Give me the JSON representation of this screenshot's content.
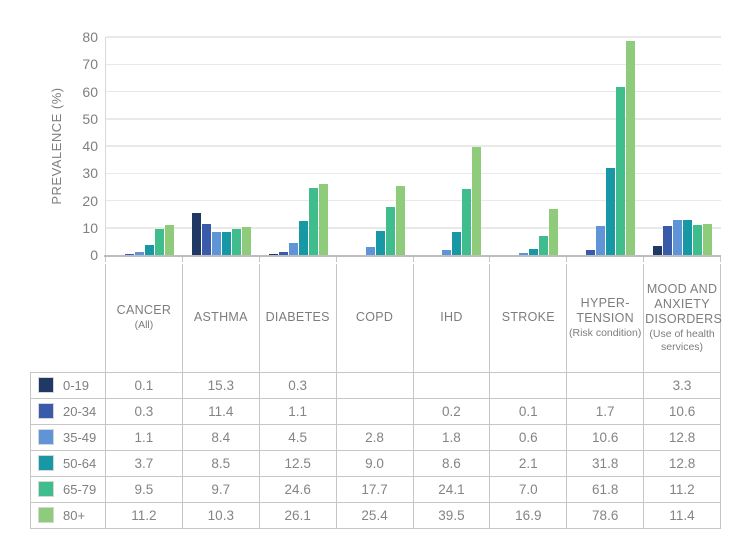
{
  "chart": {
    "ylabel": "PREVALENCE (%)",
    "y_ticks": [
      0,
      10,
      20,
      30,
      40,
      50,
      60,
      70,
      80
    ],
    "grid_color": "#e9e9e9",
    "axis_color": "#bdbdbd"
  },
  "chart_data": {
    "type": "bar",
    "title": "",
    "xlabel": "",
    "ylabel": "PREVALENCE (%)",
    "ylim": [
      0,
      80
    ],
    "grid": true,
    "legend_position": "table-left",
    "categories": [
      "CANCER (All)",
      "ASTHMA",
      "DIABETES",
      "COPD",
      "IHD",
      "STROKE",
      "HYPER-TENSION (Risk condition)",
      "MOOD AND ANXIETY DISORDERS (Use of health services)"
    ],
    "series": [
      {
        "name": "0-19",
        "color": "#1f3864",
        "values": [
          0.1,
          15.3,
          0.3,
          null,
          null,
          null,
          null,
          3.3
        ]
      },
      {
        "name": "20-34",
        "color": "#3a5ba9",
        "values": [
          0.3,
          11.4,
          1.1,
          null,
          0.2,
          0.1,
          1.7,
          10.6
        ]
      },
      {
        "name": "35-49",
        "color": "#5f94d6",
        "values": [
          1.1,
          8.4,
          4.5,
          2.8,
          1.8,
          0.6,
          10.6,
          12.8
        ]
      },
      {
        "name": "50-64",
        "color": "#1898a5",
        "values": [
          3.7,
          8.5,
          12.5,
          9.0,
          8.6,
          2.1,
          31.8,
          12.8
        ]
      },
      {
        "name": "65-79",
        "color": "#3fbd8d",
        "values": [
          9.5,
          9.7,
          24.6,
          17.7,
          24.1,
          7.0,
          61.8,
          11.2
        ]
      },
      {
        "name": "80+",
        "color": "#8ecb7a",
        "values": [
          11.2,
          10.3,
          26.1,
          25.4,
          39.5,
          16.9,
          78.6,
          11.4
        ]
      }
    ]
  },
  "table": {
    "column_headers": [
      {
        "title": "CANCER",
        "subtitle": "(All)"
      },
      {
        "title": "ASTHMA",
        "subtitle": ""
      },
      {
        "title": "DIABETES",
        "subtitle": ""
      },
      {
        "title": "COPD",
        "subtitle": ""
      },
      {
        "title": "IHD",
        "subtitle": ""
      },
      {
        "title": "STROKE",
        "subtitle": ""
      },
      {
        "title": "HYPER-TENSION",
        "subtitle": "(Risk condition)"
      },
      {
        "title": "MOOD AND ANXIETY DISORDERS",
        "subtitle": "(Use of health services)"
      }
    ],
    "rows": [
      {
        "label": "0-19",
        "color": "#1f3864",
        "cells": [
          "0.1",
          "15.3",
          "0.3",
          "",
          "",
          "",
          "",
          "3.3"
        ]
      },
      {
        "label": "20-34",
        "color": "#3a5ba9",
        "cells": [
          "0.3",
          "11.4",
          "1.1",
          "",
          "0.2",
          "0.1",
          "1.7",
          "10.6"
        ]
      },
      {
        "label": "35-49",
        "color": "#5f94d6",
        "cells": [
          "1.1",
          "8.4",
          "4.5",
          "2.8",
          "1.8",
          "0.6",
          "10.6",
          "12.8"
        ]
      },
      {
        "label": "50-64",
        "color": "#1898a5",
        "cells": [
          "3.7",
          "8.5",
          "12.5",
          "9.0",
          "8.6",
          "2.1",
          "31.8",
          "12.8"
        ]
      },
      {
        "label": "65-79",
        "color": "#3fbd8d",
        "cells": [
          "9.5",
          "9.7",
          "24.6",
          "17.7",
          "24.1",
          "7.0",
          "61.8",
          "11.2"
        ]
      },
      {
        "label": "80+",
        "color": "#8ecb7a",
        "cells": [
          "11.2",
          "10.3",
          "26.1",
          "25.4",
          "39.5",
          "16.9",
          "78.6",
          "11.4"
        ]
      }
    ]
  }
}
